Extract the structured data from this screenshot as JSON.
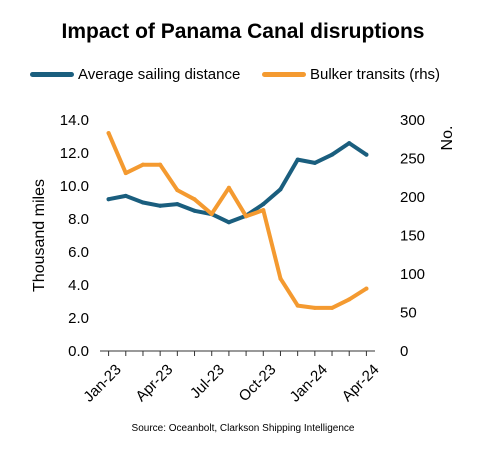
{
  "chart_data": {
    "type": "line",
    "title": "Impact of Panama Canal disruptions",
    "source": "Source: Oceanbolt, Clarkson Shipping Intelligence",
    "x_tick_labels": [
      "Jan-23",
      "Apr-23",
      "Jul-23",
      "Oct-23",
      "Jan-24",
      "Apr-24"
    ],
    "x": [
      "2023-01",
      "2023-02",
      "2023-03",
      "2023-04",
      "2023-05",
      "2023-06",
      "2023-07",
      "2023-08",
      "2023-09",
      "2023-10",
      "2023-11",
      "2023-12",
      "2024-01",
      "2024-02",
      "2024-03",
      "2024-04"
    ],
    "y_left": {
      "label": "Thousand miles",
      "range": [
        0,
        14
      ],
      "tick_labels": [
        "0.0",
        "2.0",
        "4.0",
        "6.0",
        "8.0",
        "10.0",
        "12.0",
        "14.0"
      ]
    },
    "y_right": {
      "label": "No.",
      "range": [
        0,
        300
      ],
      "tick_labels": [
        "0",
        "50",
        "100",
        "150",
        "200",
        "250",
        "300"
      ]
    },
    "series": [
      {
        "name": "Average sailing distance",
        "axis": "left",
        "color": "#1a5e7e",
        "values": [
          9.2,
          9.4,
          9.0,
          8.8,
          8.9,
          8.5,
          8.3,
          7.8,
          8.2,
          8.9,
          9.8,
          11.6,
          11.4,
          11.9,
          12.6,
          11.9
        ]
      },
      {
        "name": "Bulker transits (rhs)",
        "axis": "right",
        "color": "#f49a30",
        "values": [
          283,
          231,
          242,
          242,
          209,
          197,
          178,
          212,
          175,
          183,
          94,
          59,
          56,
          56,
          67,
          81
        ]
      }
    ],
    "grid": false,
    "legend_position": "top"
  }
}
